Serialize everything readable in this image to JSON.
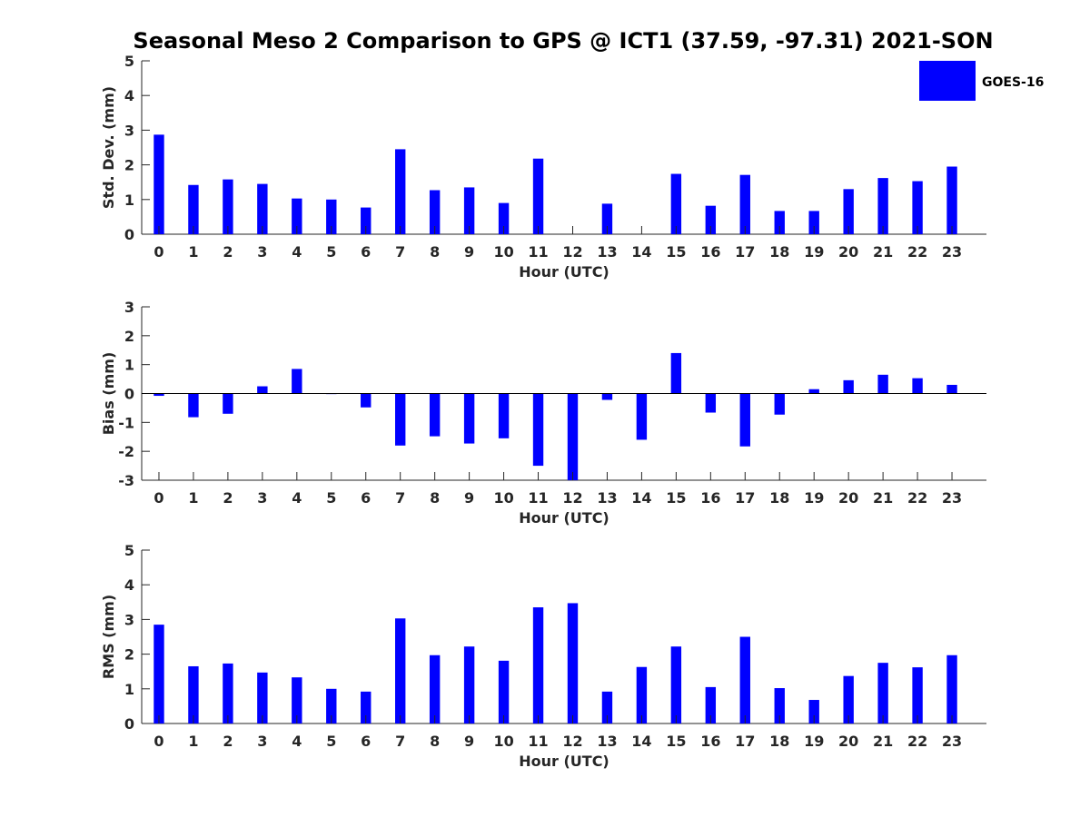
{
  "chart_data": {
    "title": "Seasonal Meso 2 Comparison to GPS @ ICT1 (37.59, -97.31) 2021-SON",
    "legend": {
      "label": "GOES-16",
      "color": "#0000ff",
      "position": "top-right"
    },
    "series_color": "#0000ff",
    "panels": [
      {
        "type": "bar",
        "ylabel": "Std. Dev. (mm)",
        "xlabel": "Hour (UTC)",
        "ylim": [
          0,
          5
        ],
        "yticks": [
          0,
          1,
          2,
          3,
          4,
          5
        ],
        "categories": [
          "0",
          "1",
          "2",
          "3",
          "4",
          "5",
          "6",
          "7",
          "8",
          "9",
          "10",
          "11",
          "12",
          "13",
          "14",
          "15",
          "16",
          "17",
          "18",
          "19",
          "20",
          "21",
          "22",
          "23"
        ],
        "values": [
          2.87,
          1.42,
          1.58,
          1.45,
          1.03,
          1.0,
          0.77,
          2.45,
          1.27,
          1.35,
          0.9,
          2.18,
          0.0,
          0.88,
          0.0,
          1.74,
          0.82,
          1.71,
          0.67,
          0.67,
          1.3,
          1.62,
          1.53,
          1.95
        ]
      },
      {
        "type": "bar",
        "ylabel": "Bias (mm)",
        "xlabel": "Hour (UTC)",
        "ylim": [
          -3,
          3
        ],
        "yticks": [
          -3,
          -2,
          -1,
          0,
          1,
          2,
          3
        ],
        "categories": [
          "0",
          "1",
          "2",
          "3",
          "4",
          "5",
          "6",
          "7",
          "8",
          "9",
          "10",
          "11",
          "12",
          "13",
          "14",
          "15",
          "16",
          "17",
          "18",
          "19",
          "20",
          "21",
          "22",
          "23"
        ],
        "values": [
          -0.08,
          -0.82,
          -0.7,
          0.25,
          0.85,
          -0.02,
          -0.48,
          -1.8,
          -1.48,
          -1.73,
          -1.55,
          -2.5,
          -3.0,
          -0.22,
          -1.6,
          1.4,
          -0.66,
          -1.83,
          -0.73,
          0.15,
          0.46,
          0.65,
          0.53,
          0.3
        ]
      },
      {
        "type": "bar",
        "ylabel": "RMS (mm)",
        "xlabel": "Hour (UTC)",
        "ylim": [
          0,
          5
        ],
        "yticks": [
          0,
          1,
          2,
          3,
          4,
          5
        ],
        "categories": [
          "0",
          "1",
          "2",
          "3",
          "4",
          "5",
          "6",
          "7",
          "8",
          "9",
          "10",
          "11",
          "12",
          "13",
          "14",
          "15",
          "16",
          "17",
          "18",
          "19",
          "20",
          "21",
          "22",
          "23"
        ],
        "values": [
          2.85,
          1.65,
          1.73,
          1.47,
          1.33,
          1.0,
          0.92,
          3.03,
          1.97,
          2.22,
          1.81,
          3.35,
          3.47,
          0.92,
          1.63,
          2.22,
          1.05,
          2.5,
          1.02,
          0.68,
          1.37,
          1.75,
          1.62,
          1.97
        ]
      }
    ]
  }
}
